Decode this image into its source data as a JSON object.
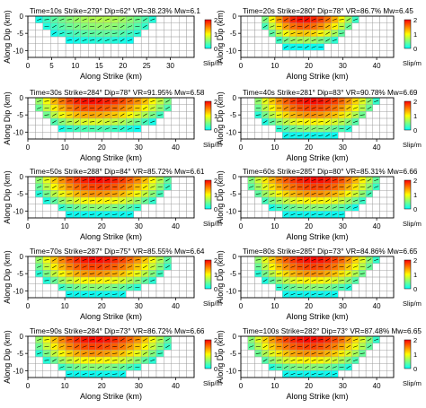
{
  "figure": {
    "xlabel": "Along Strike (km)",
    "ylabel": "Along Dip (km)",
    "colorbar_label": "Slip/m",
    "colorbar_ticks": [
      "2",
      "1",
      "0"
    ],
    "colorbar_colors": [
      "#ff0000",
      "#ff8000",
      "#ffff00",
      "#80ff80",
      "#00ffff"
    ]
  },
  "chart_data": [
    {
      "type": "heatmap",
      "title": "Time=10s   Strike=279°   Dip=62°   VR=38.23%   Mw=6.1",
      "time_s": 10,
      "strike_deg": 279,
      "dip_deg": 62,
      "vr_percent": 38.23,
      "mw": 6.1,
      "xlim": [
        0,
        35
      ],
      "x_ticks": [
        "0",
        "5",
        "10",
        "15",
        "20",
        "25",
        "30"
      ],
      "ylim": [
        -12,
        0
      ],
      "y_ticks": [
        "0",
        "-5",
        "-10"
      ],
      "slip_peak_m": 0.8,
      "rupture_center_strike_km": 16,
      "rupture_extent_strike_km": [
        2,
        27
      ],
      "rupture_depth_km": 8,
      "slip_range_m": [
        0,
        2.2
      ]
    },
    {
      "type": "heatmap",
      "title": "Time=20s   Strike=280°   Dip=78°   VR=86.7%   Mw=6.45",
      "time_s": 20,
      "strike_deg": 280,
      "dip_deg": 78,
      "vr_percent": 86.7,
      "mw": 6.45,
      "xlim": [
        0,
        45
      ],
      "x_ticks": [
        "0",
        "10",
        "20",
        "30",
        "40"
      ],
      "ylim": [
        -12,
        0
      ],
      "y_ticks": [
        "0",
        "-5",
        "-10"
      ],
      "slip_peak_m": 2.2,
      "rupture_center_strike_km": 18,
      "rupture_extent_strike_km": [
        6,
        34
      ],
      "rupture_depth_km": 9,
      "slip_range_m": [
        0,
        2.2
      ]
    },
    {
      "type": "heatmap",
      "title": "Time=30s   Strike=284°   Dip=78°   VR=91.95%   Mw=6.58",
      "time_s": 30,
      "strike_deg": 284,
      "dip_deg": 78,
      "vr_percent": 91.95,
      "mw": 6.58,
      "xlim": [
        0,
        45
      ],
      "x_ticks": [
        "0",
        "10",
        "20",
        "30",
        "40"
      ],
      "ylim": [
        -12,
        0
      ],
      "y_ticks": [
        "0",
        "-5",
        "-10"
      ],
      "slip_peak_m": 2.2,
      "rupture_center_strike_km": 17,
      "rupture_extent_strike_km": [
        1,
        40
      ],
      "rupture_depth_km": 10,
      "slip_range_m": [
        0,
        2.2
      ]
    },
    {
      "type": "heatmap",
      "title": "Time=40s   Strike=281°   Dip=83°   VR=90.78%   Mw=6.69",
      "time_s": 40,
      "strike_deg": 281,
      "dip_deg": 83,
      "vr_percent": 90.78,
      "mw": 6.69,
      "xlim": [
        0,
        45
      ],
      "x_ticks": [
        "0",
        "10",
        "20",
        "30",
        "40"
      ],
      "ylim": [
        -12,
        0
      ],
      "y_ticks": [
        "0",
        "-5",
        "-10"
      ],
      "slip_peak_m": 2.2,
      "rupture_center_strike_km": 21,
      "rupture_extent_strike_km": [
        3,
        40
      ],
      "rupture_depth_km": 11,
      "slip_range_m": [
        0,
        2.2
      ]
    },
    {
      "type": "heatmap",
      "title": "Time=50s   Strike=288°   Dip=84°   VR=85.72%   Mw=6.61",
      "time_s": 50,
      "strike_deg": 288,
      "dip_deg": 84,
      "vr_percent": 85.72,
      "mw": 6.61,
      "xlim": [
        0,
        45
      ],
      "x_ticks": [
        "0",
        "10",
        "20",
        "30",
        "40"
      ],
      "ylim": [
        -12,
        0
      ],
      "y_ticks": [
        "0",
        "-5",
        "-10"
      ],
      "slip_peak_m": 2.2,
      "rupture_center_strike_km": 19,
      "rupture_extent_strike_km": [
        1,
        39
      ],
      "rupture_depth_km": 11,
      "slip_range_m": [
        0,
        2.2
      ]
    },
    {
      "type": "heatmap",
      "title": "Time=60s   Strike=285°   Dip=80°   VR=85.31%   Mw=6.66",
      "time_s": 60,
      "strike_deg": 285,
      "dip_deg": 80,
      "vr_percent": 85.31,
      "mw": 6.66,
      "xlim": [
        0,
        45
      ],
      "x_ticks": [
        "0",
        "10",
        "20",
        "30",
        "40"
      ],
      "ylim": [
        -12,
        0
      ],
      "y_ticks": [
        "0",
        "-5",
        "-10"
      ],
      "slip_peak_m": 2.2,
      "rupture_center_strike_km": 22,
      "rupture_extent_strike_km": [
        1,
        41
      ],
      "rupture_depth_km": 11,
      "slip_range_m": [
        0,
        2.2
      ]
    },
    {
      "type": "heatmap",
      "title": "Time=70s   Strike=287°   Dip=75°   VR=85.55%   Mw=6.64",
      "time_s": 70,
      "strike_deg": 287,
      "dip_deg": 75,
      "vr_percent": 85.55,
      "mw": 6.64,
      "xlim": [
        0,
        45
      ],
      "x_ticks": [
        "0",
        "10",
        "20",
        "30",
        "40"
      ],
      "ylim": [
        -12,
        0
      ],
      "y_ticks": [
        "0",
        "-5",
        "-10"
      ],
      "slip_peak_m": 2.2,
      "rupture_center_strike_km": 18,
      "rupture_extent_strike_km": [
        1,
        39
      ],
      "rupture_depth_km": 11,
      "slip_range_m": [
        0,
        2.2
      ]
    },
    {
      "type": "heatmap",
      "title": "Time=80s   Strike=285°   Dip=73°   VR=84.86%   Mw=6.65",
      "time_s": 80,
      "strike_deg": 285,
      "dip_deg": 73,
      "vr_percent": 84.86,
      "mw": 6.65,
      "xlim": [
        0,
        45
      ],
      "x_ticks": [
        "0",
        "10",
        "20",
        "30",
        "40"
      ],
      "ylim": [
        -12,
        0
      ],
      "y_ticks": [
        "0",
        "-5",
        "-10"
      ],
      "slip_peak_m": 2.2,
      "rupture_center_strike_km": 21,
      "rupture_extent_strike_km": [
        3,
        40
      ],
      "rupture_depth_km": 11,
      "slip_range_m": [
        0,
        2.2
      ]
    },
    {
      "type": "heatmap",
      "title": "Time=90s   Strike=284°   Dip=73°   VR=86.72%   Mw=6.66",
      "time_s": 90,
      "strike_deg": 284,
      "dip_deg": 73,
      "vr_percent": 86.72,
      "mw": 6.66,
      "xlim": [
        0,
        45
      ],
      "x_ticks": [
        "0",
        "10",
        "20",
        "30",
        "40"
      ],
      "ylim": [
        -12,
        0
      ],
      "y_ticks": [
        "0",
        "-5",
        "-10"
      ],
      "slip_peak_m": 2.2,
      "rupture_center_strike_km": 18,
      "rupture_extent_strike_km": [
        1,
        39
      ],
      "rupture_depth_km": 11,
      "slip_range_m": [
        0,
        2.2
      ]
    },
    {
      "type": "heatmap",
      "title": "Time=100s   Strike=282°   Dip=73°   VR=87.48%   Mw=6.65",
      "time_s": 100,
      "strike_deg": 282,
      "dip_deg": 73,
      "vr_percent": 87.48,
      "mw": 6.65,
      "xlim": [
        0,
        45
      ],
      "x_ticks": [
        "0",
        "10",
        "20",
        "30",
        "40"
      ],
      "ylim": [
        -12,
        0
      ],
      "y_ticks": [
        "0",
        "-5",
        "-10"
      ],
      "slip_peak_m": 2.2,
      "rupture_center_strike_km": 20,
      "rupture_extent_strike_km": [
        1,
        40
      ],
      "rupture_depth_km": 11,
      "slip_range_m": [
        0,
        2.2
      ]
    }
  ]
}
